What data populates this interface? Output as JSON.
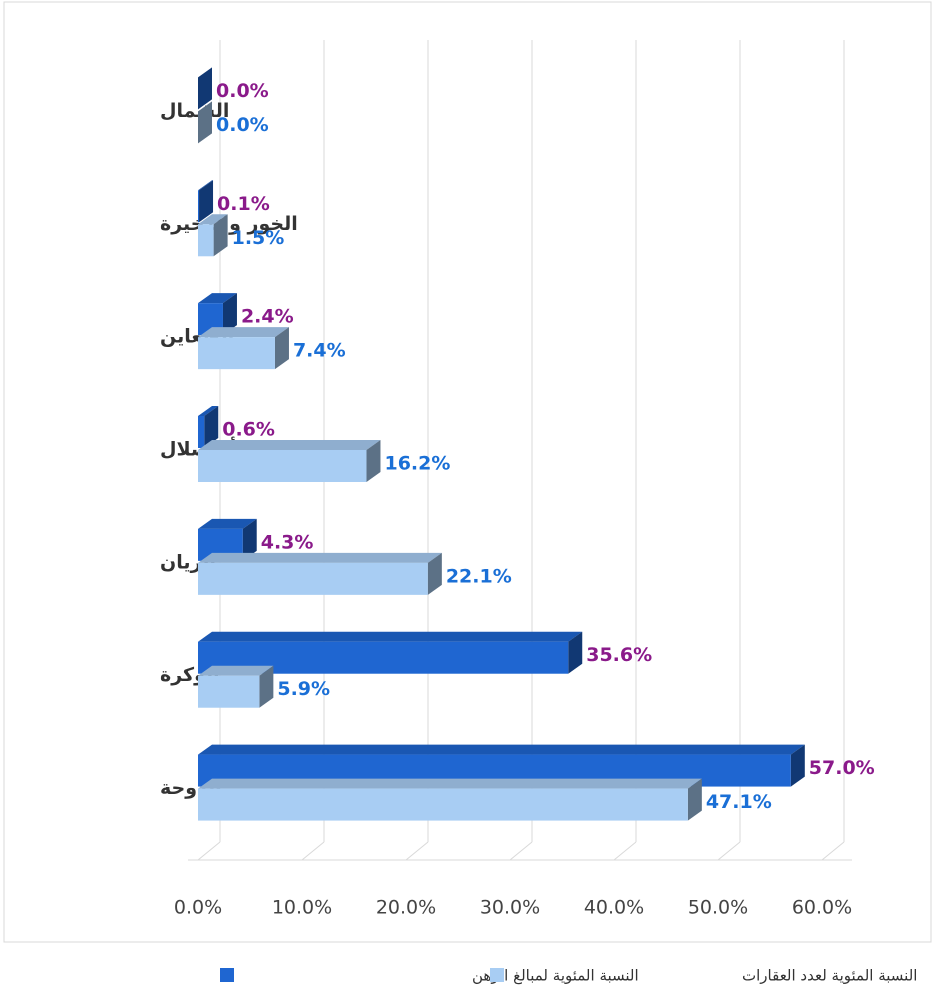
{
  "chart_data": {
    "type": "bar3d",
    "categories": [
      "الشمال",
      "الخور والذخيرة",
      "الظعاين",
      "أم صلال",
      "الريان",
      "الوكرة",
      "الدوحة"
    ],
    "series": [
      {
        "name": "النسبة المئوية لمبالغ الرهن",
        "color": "#1f66d1",
        "label_color": "#8a1a8a",
        "values": [
          0.0,
          0.1,
          2.4,
          0.6,
          4.3,
          35.6,
          57.0
        ],
        "value_labels": [
          "0.0%",
          "0.1%",
          "2.4%",
          "0.6%",
          "4.3%",
          "35.6%",
          "57.0%"
        ]
      },
      {
        "name": "النسبة المئوية لعدد العقارات",
        "color": "#a8cdf3",
        "label_color": "#1a6fd6",
        "values": [
          0.0,
          1.5,
          7.4,
          16.2,
          22.1,
          5.9,
          47.1
        ],
        "value_labels": [
          "0.0%",
          "1.5%",
          "7.4%",
          "16.2%",
          "22.1%",
          "5.9%",
          "47.1%"
        ]
      }
    ],
    "xlim": [
      0,
      60
    ],
    "xticks": [
      {
        "value": 0,
        "label": "0.0%"
      },
      {
        "value": 10,
        "label": "10.0%"
      },
      {
        "value": 20,
        "label": "20.0%"
      },
      {
        "value": 30,
        "label": "30.0%"
      },
      {
        "value": 40,
        "label": "40.0%"
      },
      {
        "value": 50,
        "label": "50.0%"
      },
      {
        "value": 60,
        "label": "60.0%"
      }
    ],
    "grid": true
  }
}
